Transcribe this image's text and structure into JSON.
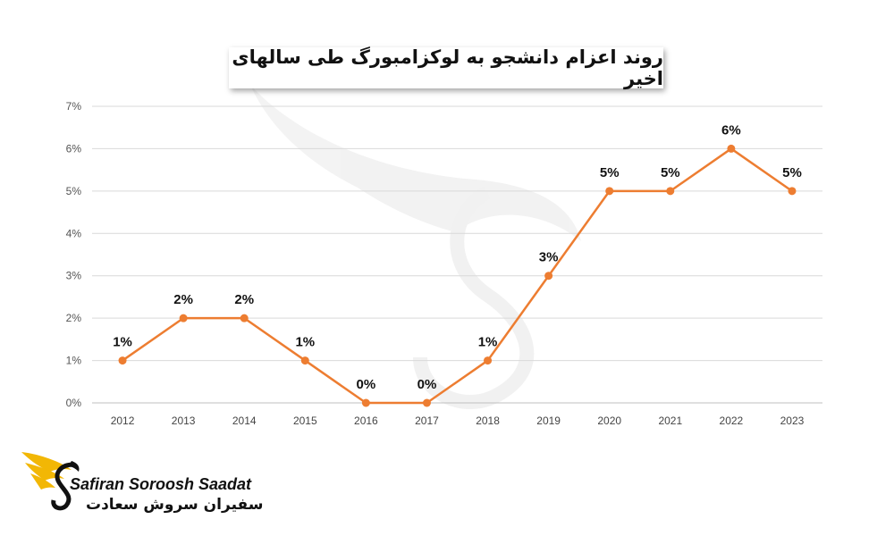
{
  "chart_data": {
    "type": "line",
    "title": "روند اعزام دانشجو به لوکزامبورگ طی سالهای اخیر",
    "categories": [
      "2012",
      "2013",
      "2014",
      "2015",
      "2016",
      "2017",
      "2018",
      "2019",
      "2020",
      "2021",
      "2022",
      "2023"
    ],
    "values": [
      1,
      2,
      2,
      1,
      0,
      0,
      1,
      3,
      5,
      5,
      6,
      5
    ],
    "data_labels": [
      "1%",
      "2%",
      "2%",
      "1%",
      "0%",
      "0%",
      "1%",
      "3%",
      "5%",
      "5%",
      "6%",
      "5%"
    ],
    "y_ticks": [
      "0%",
      "1%",
      "2%",
      "3%",
      "4%",
      "5%",
      "6%",
      "7%"
    ],
    "ylim": [
      0,
      7
    ],
    "grid": true,
    "series_color": "#ED7D31"
  },
  "brand": {
    "name_en": "Safiran Soroosh Saadat",
    "name_fa": "سفیران سروش سعادت",
    "accent": "#F2B705"
  }
}
